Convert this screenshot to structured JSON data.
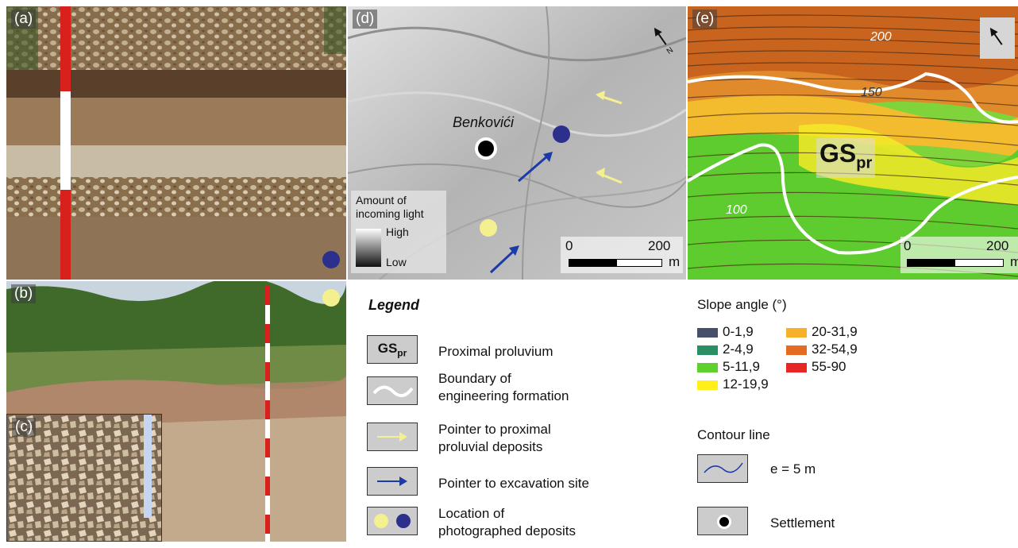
{
  "panels": {
    "a": {
      "label": "(a)"
    },
    "b": {
      "label": "(b)"
    },
    "c": {
      "label": "(c)"
    },
    "d": {
      "label": "(d)",
      "settlement_name": "Benkovići",
      "light_legend": {
        "line1": "Amount of",
        "line2": "incoming light",
        "high": "High",
        "low": "Low"
      },
      "scale": {
        "start": "0",
        "end": "200",
        "unit": "m"
      }
    },
    "e": {
      "label": "(e)",
      "contour_labels": [
        "200",
        "150",
        "100"
      ],
      "formation": {
        "main": "GS",
        "sub": "pr"
      },
      "scale": {
        "start": "0",
        "end": "200",
        "unit": "m"
      }
    }
  },
  "legend": {
    "title": "Legend",
    "items": [
      {
        "text_line1": "Proximal proluvium",
        "text_line2": "",
        "box_main": "GS",
        "box_sub": "pr"
      },
      {
        "text_line1": "Boundary of",
        "text_line2": "engineering formation"
      },
      {
        "text_line1": "Pointer to proximal",
        "text_line2": "proluvial deposits"
      },
      {
        "text_line1": "Pointer to excavation site",
        "text_line2": ""
      },
      {
        "text_line1": "Location of",
        "text_line2": "photographed deposits"
      }
    ],
    "slope": {
      "title": "Slope angle (°)",
      "classes": [
        {
          "label": "0-1,9",
          "color": "#45506a"
        },
        {
          "label": "2-4,9",
          "color": "#2a8f62"
        },
        {
          "label": "5-11,9",
          "color": "#5fd12f"
        },
        {
          "label": "12-19,9",
          "color": "#ffef1a"
        },
        {
          "label": "20-31,9",
          "color": "#f7b02a"
        },
        {
          "label": "32-54,9",
          "color": "#e56a22"
        },
        {
          "label": "55-90",
          "color": "#e72626"
        }
      ]
    },
    "contour": {
      "title": "Contour line",
      "text": "e = 5 m"
    },
    "settlement": {
      "text": "Settlement"
    }
  },
  "colors": {
    "yellow_marker": "#f5f08f",
    "blue_marker": "#2c2f8c",
    "yellow_arrow": "#f5f08f",
    "blue_arrow": "#1c3aa8"
  }
}
